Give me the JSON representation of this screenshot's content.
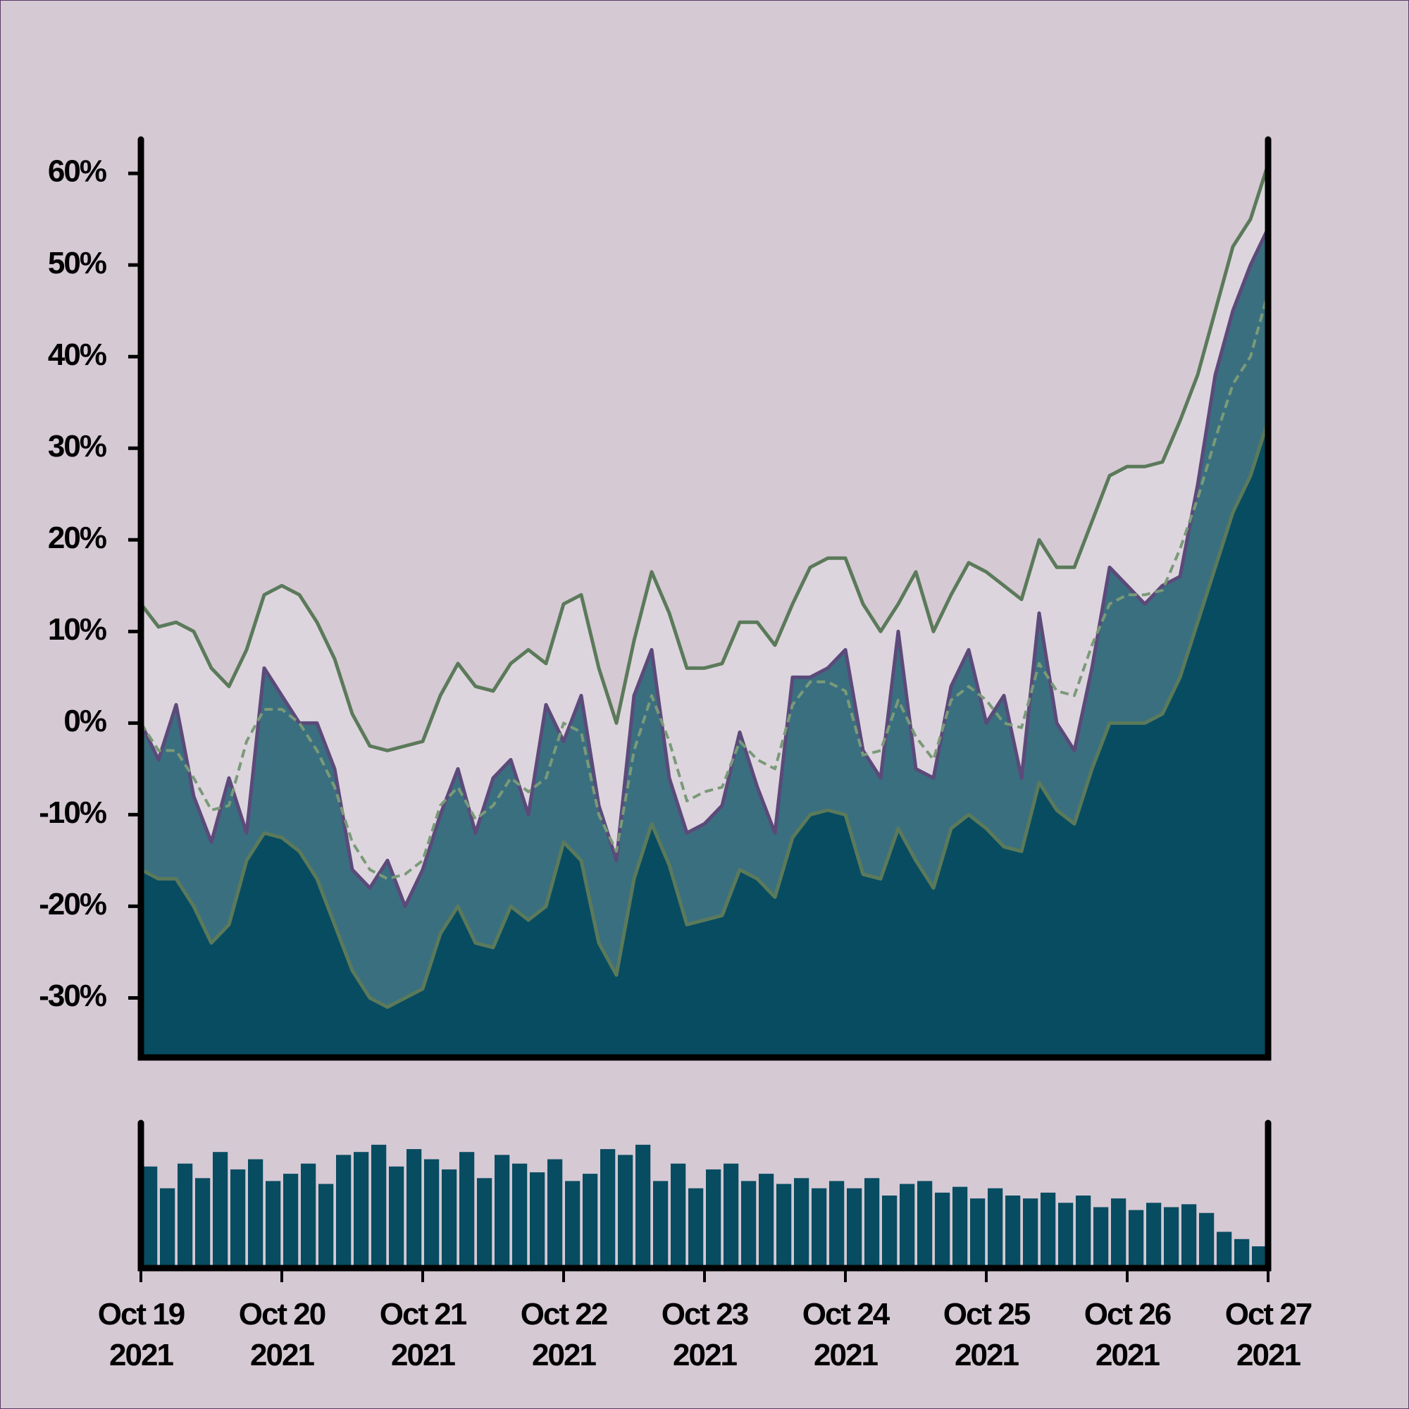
{
  "chart_data": [
    {
      "type": "area-band",
      "x": [
        "2021-10-19T00:00",
        "2021-10-19T03:00",
        "2021-10-19T06:00",
        "2021-10-19T09:00",
        "2021-10-19T12:00",
        "2021-10-19T15:00",
        "2021-10-19T18:00",
        "2021-10-19T21:00",
        "2021-10-20T00:00",
        "2021-10-20T03:00",
        "2021-10-20T06:00",
        "2021-10-20T09:00",
        "2021-10-20T12:00",
        "2021-10-20T15:00",
        "2021-10-20T18:00",
        "2021-10-20T21:00",
        "2021-10-21T00:00",
        "2021-10-21T03:00",
        "2021-10-21T06:00",
        "2021-10-21T09:00",
        "2021-10-21T12:00",
        "2021-10-21T15:00",
        "2021-10-21T18:00",
        "2021-10-21T21:00",
        "2021-10-22T00:00",
        "2021-10-22T03:00",
        "2021-10-22T06:00",
        "2021-10-22T09:00",
        "2021-10-22T12:00",
        "2021-10-22T15:00",
        "2021-10-22T18:00",
        "2021-10-22T21:00",
        "2021-10-23T00:00",
        "2021-10-23T03:00",
        "2021-10-23T06:00",
        "2021-10-23T09:00",
        "2021-10-23T12:00",
        "2021-10-23T15:00",
        "2021-10-23T18:00",
        "2021-10-23T21:00",
        "2021-10-24T00:00",
        "2021-10-24T03:00",
        "2021-10-24T06:00",
        "2021-10-24T09:00",
        "2021-10-24T12:00",
        "2021-10-24T15:00",
        "2021-10-24T18:00",
        "2021-10-24T21:00",
        "2021-10-25T00:00",
        "2021-10-25T03:00",
        "2021-10-25T06:00",
        "2021-10-25T09:00",
        "2021-10-25T12:00",
        "2021-10-25T15:00",
        "2021-10-25T18:00",
        "2021-10-25T21:00",
        "2021-10-26T00:00",
        "2021-10-26T03:00",
        "2021-10-26T06:00",
        "2021-10-26T09:00",
        "2021-10-26T12:00",
        "2021-10-26T15:00",
        "2021-10-26T18:00",
        "2021-10-26T21:00",
        "2021-10-27T00:00"
      ],
      "series": [
        {
          "color": "#5b7a5a",
          "fill": "#ddd5de",
          "style": "solid",
          "values": [
            13,
            10.5,
            11,
            10,
            6,
            4,
            8,
            14,
            15,
            14,
            11,
            7,
            1,
            -2.5,
            -3,
            -2.5,
            -2,
            3,
            6.5,
            4,
            3.5,
            6.5,
            8,
            6.5,
            13,
            14,
            6,
            0,
            9,
            16.5,
            12,
            6,
            6,
            6.5,
            11,
            11,
            8.5,
            13,
            17,
            18,
            18,
            13,
            10,
            13,
            16.5,
            10,
            14,
            17.5,
            16.5,
            15,
            13.5,
            20,
            17,
            17,
            22,
            27,
            28,
            28,
            28.5,
            33,
            38,
            45,
            52,
            55,
            61
          ]
        },
        {
          "color": "#5b4a7a",
          "fill": "#3a6f80",
          "style": "solid",
          "values": [
            0,
            -4,
            2,
            -8,
            -13,
            -6,
            -12,
            6,
            3,
            0,
            0,
            -5,
            -16,
            -18,
            -15,
            -20,
            -16,
            -10,
            -5,
            -12,
            -6,
            -4,
            -10,
            2,
            -2,
            3,
            -9,
            -15,
            3,
            8,
            -6,
            -12,
            -11,
            -9,
            -1,
            -7,
            -12,
            5,
            5,
            6,
            8,
            -3,
            -6,
            10,
            -5,
            -6,
            4,
            8,
            0,
            3,
            -6,
            12,
            0,
            -3,
            6,
            17,
            15,
            13,
            15,
            16,
            26,
            38,
            45,
            50,
            54
          ]
        },
        {
          "color": "#5b7a5a",
          "fill": "#084c61",
          "style": "solid",
          "values": [
            -16,
            -17,
            -17,
            -20,
            -24,
            -22,
            -15,
            -12,
            -12.5,
            -14,
            -17,
            -22,
            -27,
            -30,
            -31,
            -30,
            -29,
            -23,
            -20,
            -24,
            -24.5,
            -20,
            -21.5,
            -20,
            -13,
            -15,
            -24,
            -27.5,
            -17,
            -11,
            -15.5,
            -22,
            -21.5,
            -21,
            -16,
            -17,
            -19,
            -12.5,
            -10,
            -9.5,
            -10,
            -16.5,
            -17,
            -11.5,
            -15,
            -18,
            -11.5,
            -10,
            -11.5,
            -13.5,
            -14,
            -6.5,
            -9.5,
            -11,
            -5,
            0,
            0,
            0,
            1,
            5,
            11,
            17,
            23,
            27,
            33
          ]
        },
        {
          "color": "#7a9a78",
          "style": "dashed",
          "values": [
            0,
            -3,
            -3,
            -6,
            -9.5,
            -9,
            -2,
            1.5,
            1.5,
            0,
            -3,
            -7,
            -13,
            -16,
            -17,
            -16.5,
            -15,
            -9,
            -7,
            -10.5,
            -9,
            -6,
            -7.5,
            -6,
            0,
            -1,
            -10,
            -14,
            -3,
            3,
            -2,
            -8.5,
            -7.5,
            -7,
            -2,
            -4,
            -5,
            2,
            4.5,
            4.5,
            3.5,
            -3.5,
            -3,
            2.5,
            -1.5,
            -4,
            2.5,
            4,
            2.5,
            0,
            -0.5,
            6.5,
            3.5,
            3,
            8.5,
            13,
            14,
            14,
            14.5,
            19,
            24.5,
            31,
            37,
            40,
            47
          ]
        }
      ],
      "xlim": [
        "2021-10-19T00:00",
        "2021-10-27T00:00"
      ],
      "ylim": [
        -36.5,
        63.7
      ],
      "yticks": [
        {
          "value": 60,
          "label": "60%"
        },
        {
          "value": 50,
          "label": "50%"
        },
        {
          "value": 40,
          "label": "40%"
        },
        {
          "value": 30,
          "label": "30%"
        },
        {
          "value": 20,
          "label": "20%"
        },
        {
          "value": 10,
          "label": "10%"
        },
        {
          "value": 0,
          "label": "0%"
        },
        {
          "value": -10,
          "label": "-10%"
        },
        {
          "value": -20,
          "label": "-20%"
        },
        {
          "value": -30,
          "label": "-30%"
        }
      ]
    },
    {
      "type": "bar",
      "x": [
        "2021-10-19T00:00",
        "2021-10-19T03:00",
        "2021-10-19T06:00",
        "2021-10-19T09:00",
        "2021-10-19T12:00",
        "2021-10-19T15:00",
        "2021-10-19T18:00",
        "2021-10-19T21:00",
        "2021-10-20T00:00",
        "2021-10-20T03:00",
        "2021-10-20T06:00",
        "2021-10-20T09:00",
        "2021-10-20T12:00",
        "2021-10-20T15:00",
        "2021-10-20T18:00",
        "2021-10-20T21:00",
        "2021-10-21T00:00",
        "2021-10-21T03:00",
        "2021-10-21T06:00",
        "2021-10-21T09:00",
        "2021-10-21T12:00",
        "2021-10-21T15:00",
        "2021-10-21T18:00",
        "2021-10-21T21:00",
        "2021-10-22T00:00",
        "2021-10-22T03:00",
        "2021-10-22T06:00",
        "2021-10-22T09:00",
        "2021-10-22T12:00",
        "2021-10-22T15:00",
        "2021-10-22T18:00",
        "2021-10-22T21:00",
        "2021-10-23T00:00",
        "2021-10-23T03:00",
        "2021-10-23T06:00",
        "2021-10-23T09:00",
        "2021-10-23T12:00",
        "2021-10-23T15:00",
        "2021-10-23T18:00",
        "2021-10-23T21:00",
        "2021-10-24T00:00",
        "2021-10-24T03:00",
        "2021-10-24T06:00",
        "2021-10-24T09:00",
        "2021-10-24T12:00",
        "2021-10-24T15:00",
        "2021-10-24T18:00",
        "2021-10-24T21:00",
        "2021-10-25T00:00",
        "2021-10-25T03:00",
        "2021-10-25T06:00",
        "2021-10-25T09:00",
        "2021-10-25T12:00",
        "2021-10-25T15:00",
        "2021-10-25T18:00",
        "2021-10-25T21:00",
        "2021-10-26T00:00",
        "2021-10-26T03:00",
        "2021-10-26T06:00",
        "2021-10-26T09:00",
        "2021-10-26T12:00",
        "2021-10-26T15:00",
        "2021-10-26T18:00",
        "2021-10-26T21:00"
      ],
      "values": [
        70,
        55,
        72,
        62,
        80,
        68,
        75,
        60,
        65,
        72,
        58,
        78,
        80,
        85,
        70,
        82,
        75,
        68,
        80,
        62,
        78,
        72,
        66,
        75,
        60,
        65,
        82,
        78,
        85,
        60,
        72,
        55,
        68,
        72,
        60,
        65,
        58,
        62,
        55,
        60,
        55,
        62,
        50,
        58,
        60,
        52,
        56,
        48,
        55,
        50,
        48,
        52,
        45,
        50,
        42,
        48,
        40,
        45,
        42,
        44,
        38,
        25,
        20,
        15
      ],
      "color": "#084c61",
      "xlim": [
        "2021-10-19T00:00",
        "2021-10-27T00:00"
      ],
      "ylim": [
        0,
        100
      ],
      "xticks": [
        {
          "value": "2021-10-19T00:00",
          "label": "Oct 19 2021"
        },
        {
          "value": "2021-10-20T00:00",
          "label": "Oct 20 2021"
        },
        {
          "value": "2021-10-21T00:00",
          "label": "Oct 21 2021"
        },
        {
          "value": "2021-10-22T00:00",
          "label": "Oct 22 2021"
        },
        {
          "value": "2021-10-23T00:00",
          "label": "Oct 23 2021"
        },
        {
          "value": "2021-10-24T00:00",
          "label": "Oct 24 2021"
        },
        {
          "value": "2021-10-25T00:00",
          "label": "Oct 25 2021"
        },
        {
          "value": "2021-10-26T00:00",
          "label": "Oct 26 2021"
        },
        {
          "value": "2021-10-27T00:00",
          "label": "Oct 27 2021"
        }
      ]
    }
  ]
}
